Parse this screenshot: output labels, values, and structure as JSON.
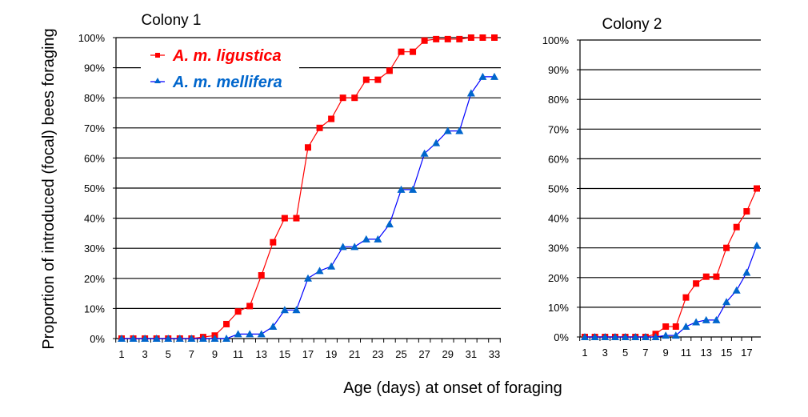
{
  "chart_data": [
    {
      "type": "line",
      "title": "Colony 1",
      "xlabel": "Age (days) at onset of foraging",
      "ylabel": "Proportion of introduced (focal) bees foraging",
      "x": [
        1,
        2,
        3,
        4,
        5,
        6,
        7,
        8,
        9,
        10,
        11,
        12,
        13,
        14,
        15,
        16,
        17,
        18,
        19,
        20,
        21,
        22,
        23,
        24,
        25,
        26,
        27,
        28,
        29,
        30,
        31,
        32,
        33
      ],
      "xticks": [
        "1",
        "3",
        "5",
        "7",
        "9",
        "11",
        "13",
        "15",
        "17",
        "19",
        "21",
        "23",
        "25",
        "27",
        "29",
        "31",
        "33"
      ],
      "xlim": [
        1,
        33
      ],
      "ylim": [
        0,
        100
      ],
      "yticks": [
        "0%",
        "10%",
        "20%",
        "30%",
        "40%",
        "50%",
        "60%",
        "70%",
        "80%",
        "90%",
        "100%"
      ],
      "grid": true,
      "legend": {
        "placement": "top-left",
        "entries": [
          "A. m. ligustica",
          "A. m. mellifera"
        ]
      },
      "series": [
        {
          "name": "A. m. ligustica",
          "color": "#ff0000",
          "marker": "square",
          "values": [
            0,
            0,
            0,
            0,
            0,
            0,
            0,
            0.5,
            1,
            4.8,
            9,
            10.8,
            21,
            32,
            40,
            40,
            63.5,
            70,
            73,
            80,
            80,
            86,
            86,
            89,
            95.3,
            95.3,
            99,
            99.5,
            99.5,
            99.5,
            100,
            100,
            100
          ]
        },
        {
          "name": "A. m. mellifera",
          "color": "#0000ff",
          "marker": "triangle",
          "values": [
            0,
            0,
            0,
            0,
            0,
            0,
            0,
            0,
            0,
            0,
            1.5,
            1.5,
            1.5,
            4,
            9.5,
            9.5,
            20,
            22.5,
            24,
            30.5,
            30.5,
            33,
            33,
            38,
            49.5,
            49.5,
            61.5,
            65,
            69,
            69,
            81.5,
            87,
            87
          ]
        }
      ]
    },
    {
      "type": "line",
      "title": "Colony 2",
      "x": [
        1,
        2,
        3,
        4,
        5,
        6,
        7,
        8,
        9,
        10,
        11,
        12,
        13,
        14,
        15,
        16,
        17,
        18
      ],
      "xticks": [
        "1",
        "3",
        "5",
        "7",
        "9",
        "11",
        "13",
        "15",
        "17"
      ],
      "xlim": [
        1,
        18
      ],
      "ylim": [
        0,
        100
      ],
      "yticks": [
        "0%",
        "10%",
        "20%",
        "30%",
        "40%",
        "50%",
        "60%",
        "70%",
        "80%",
        "90%",
        "100%"
      ],
      "grid": true,
      "series": [
        {
          "name": "A. m. ligustica",
          "color": "#ff0000",
          "marker": "square",
          "values": [
            0,
            0,
            0,
            0,
            0,
            0,
            0,
            1,
            3.5,
            3.5,
            13.3,
            18,
            20.3,
            20.3,
            30,
            37,
            42.3,
            50
          ]
        },
        {
          "name": "A. m. mellifera",
          "color": "#0000ff",
          "marker": "triangle",
          "values": [
            0,
            0,
            0,
            0,
            0,
            0,
            0,
            0,
            0.5,
            0.5,
            3.5,
            5,
            5.7,
            5.7,
            11.8,
            15.7,
            21.7,
            30.8
          ]
        }
      ]
    }
  ],
  "colors": {
    "ligustica_line": "#ff0000",
    "ligustica_marker": "#ff0000",
    "mellifera_line": "#0000ff",
    "mellifera_marker": "#0066cc",
    "legend_ligustica_text": "#ff0000",
    "legend_mellifera_text": "#0066cc",
    "grid": "#000000"
  }
}
